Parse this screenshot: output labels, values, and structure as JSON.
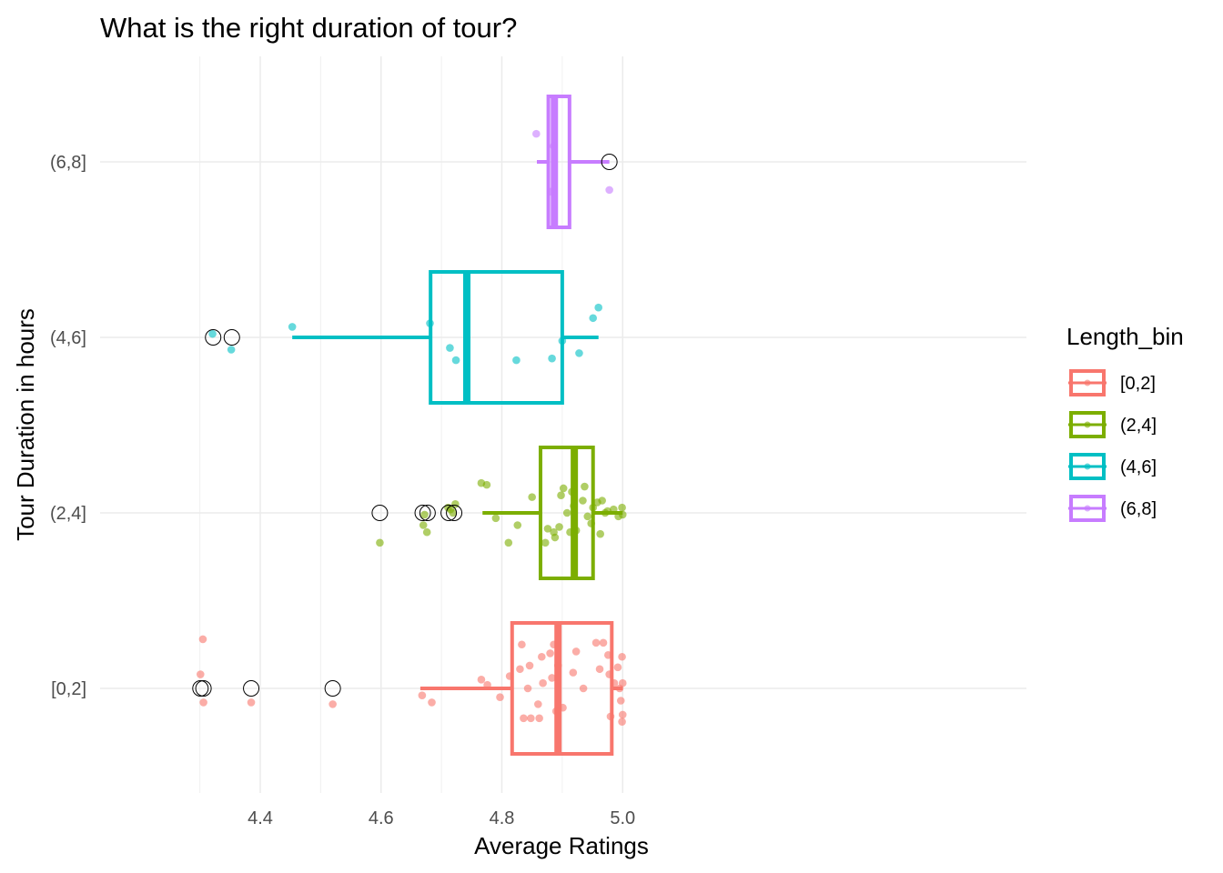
{
  "chart_data": {
    "type": "boxplot",
    "orientation": "horizontal",
    "title": "What is the right duration of tour?",
    "xlabel": "Average Ratings",
    "ylabel": "Tour Duration in hours",
    "xlim": [
      4.25,
      5.03
    ],
    "x_ticks": [
      "4.4",
      "4.6",
      "4.8",
      "5.0"
    ],
    "categories": [
      "[0,2]",
      "(2,4]",
      "(4,6]",
      "(6,8]"
    ],
    "grid": true,
    "legend": {
      "title": "Length_bin",
      "position": "right"
    },
    "series": [
      {
        "name": "[0,2]",
        "color": "#F8766D",
        "box": {
          "min": 4.665,
          "q1": 4.817,
          "median": 4.893,
          "q3": 4.982,
          "max": 5.0
        },
        "outliers": [
          4.301,
          4.306,
          4.385,
          4.52
        ],
        "points": [
          [
            4.301,
            0.08
          ],
          [
            4.305,
            0.28
          ],
          [
            4.306,
            -0.08
          ],
          [
            4.385,
            -0.08
          ],
          [
            4.52,
            -0.09
          ],
          [
            4.668,
            -0.04
          ],
          [
            4.684,
            -0.08
          ],
          [
            4.766,
            0.05
          ],
          [
            4.776,
            0.02
          ],
          [
            4.797,
            -0.05
          ],
          [
            4.813,
            0.07
          ],
          [
            4.83,
            0.11
          ],
          [
            4.833,
            0.25
          ],
          [
            4.836,
            -0.17
          ],
          [
            4.843,
            0.0
          ],
          [
            4.846,
            0.13
          ],
          [
            4.848,
            -0.17
          ],
          [
            4.86,
            -0.09
          ],
          [
            4.862,
            -0.17
          ],
          [
            4.866,
            0.18
          ],
          [
            4.868,
            0.03
          ],
          [
            4.883,
            0.06
          ],
          [
            4.886,
            0.25
          ],
          [
            4.88,
            0.2
          ],
          [
            4.89,
            -0.13
          ],
          [
            4.893,
            0.13
          ],
          [
            4.901,
            -0.11
          ],
          [
            4.918,
            0.09
          ],
          [
            4.923,
            0.21
          ],
          [
            4.935,
            0.0
          ],
          [
            4.956,
            0.26
          ],
          [
            4.962,
            0.11
          ],
          [
            4.968,
            0.26
          ],
          [
            4.976,
            0.19
          ],
          [
            4.978,
            0.08
          ],
          [
            4.98,
            -0.16
          ],
          [
            4.986,
            0.03
          ],
          [
            4.992,
            0.12
          ],
          [
            4.995,
            0.0
          ],
          [
            4.999,
            0.18
          ],
          [
            5.0,
            0.03
          ],
          [
            4.999,
            -0.19
          ],
          [
            5.0,
            -0.15
          ],
          [
            4.997,
            -0.07
          ]
        ]
      },
      {
        "name": "(2,4]",
        "color": "#7CAE00",
        "box": {
          "min": 4.768,
          "q1": 4.864,
          "median": 4.92,
          "q3": 4.951,
          "max": 5.0
        },
        "outliers": [
          4.598,
          4.669,
          4.677,
          4.712,
          4.721
        ],
        "points": [
          [
            4.598,
            -0.17
          ],
          [
            4.67,
            -0.07
          ],
          [
            4.672,
            -0.01
          ],
          [
            4.676,
            -0.11
          ],
          [
            4.711,
            0.03
          ],
          [
            4.715,
            0.02
          ],
          [
            4.719,
            0.0
          ],
          [
            4.723,
            0.05
          ],
          [
            4.766,
            0.17
          ],
          [
            4.775,
            0.16
          ],
          [
            4.79,
            -0.03
          ],
          [
            4.811,
            -0.17
          ],
          [
            4.826,
            -0.07
          ],
          [
            4.85,
            0.09
          ],
          [
            4.872,
            -0.17
          ],
          [
            4.876,
            -0.09
          ],
          [
            4.886,
            -0.11
          ],
          [
            4.888,
            -0.14
          ],
          [
            4.895,
            -0.08
          ],
          [
            4.898,
            0.1
          ],
          [
            4.902,
            0.14
          ],
          [
            4.908,
            0.0
          ],
          [
            4.913,
            -0.11
          ],
          [
            4.916,
            0.12
          ],
          [
            4.919,
            0.04
          ],
          [
            4.923,
            -0.1
          ],
          [
            4.934,
            0.07
          ],
          [
            4.937,
            0.15
          ],
          [
            4.942,
            -0.02
          ],
          [
            4.948,
            -0.06
          ],
          [
            4.951,
            0.03
          ],
          [
            4.958,
            0.06
          ],
          [
            4.963,
            -0.12
          ],
          [
            4.966,
            0.07
          ],
          [
            4.971,
            0.0
          ],
          [
            4.975,
            0.01
          ],
          [
            4.985,
            0.02
          ],
          [
            4.993,
            -0.02
          ],
          [
            4.999,
            0.03
          ],
          [
            5.0,
            -0.01
          ]
        ]
      },
      {
        "name": "(4,6]",
        "color": "#00BFC4",
        "box": {
          "min": 4.453,
          "q1": 4.682,
          "median": 4.742,
          "q3": 4.9,
          "max": 4.96
        },
        "outliers": [
          4.322,
          4.353
        ],
        "points": [
          [
            4.321,
            0.02
          ],
          [
            4.352,
            -0.07
          ],
          [
            4.453,
            0.06
          ],
          [
            4.681,
            0.08
          ],
          [
            4.714,
            -0.06
          ],
          [
            4.724,
            -0.13
          ],
          [
            4.824,
            -0.13
          ],
          [
            4.883,
            -0.12
          ],
          [
            4.9,
            -0.02
          ],
          [
            4.928,
            -0.09
          ],
          [
            4.951,
            0.11
          ],
          [
            4.96,
            0.17
          ]
        ]
      },
      {
        "name": "(6,8]",
        "color": "#C77CFF",
        "box": {
          "min": 4.858,
          "q1": 4.877,
          "median": 4.887,
          "q3": 4.912,
          "max": 4.978
        },
        "outliers": [
          4.978
        ],
        "points": [
          [
            4.857,
            0.16
          ],
          [
            4.886,
            0.09
          ],
          [
            4.881,
            -0.17
          ],
          [
            4.978,
            -0.16
          ]
        ]
      }
    ]
  }
}
